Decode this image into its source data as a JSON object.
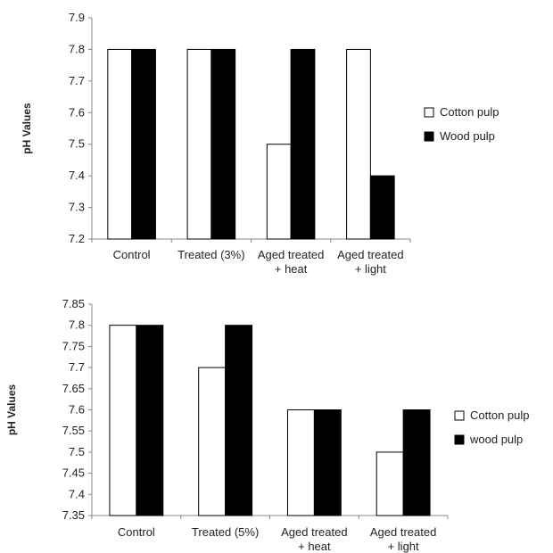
{
  "chart_data": [
    {
      "type": "bar",
      "categories": [
        [
          "Control"
        ],
        [
          "Treated (3%)"
        ],
        [
          "Aged treated",
          "+ heat"
        ],
        [
          "Aged treated",
          "+ light"
        ]
      ],
      "series": [
        {
          "name": "Cotton pulp",
          "values": [
            7.8,
            7.8,
            7.5,
            7.8
          ],
          "color": "#ffffff"
        },
        {
          "name": "Wood pulp",
          "values": [
            7.8,
            7.8,
            7.8,
            7.4
          ],
          "color": "#000000"
        }
      ],
      "ylabel": "pH Values",
      "ylim": [
        7.2,
        7.9
      ],
      "yticks": [
        "7.2",
        "7.3",
        "7.4",
        "7.5",
        "7.6",
        "7.7",
        "7.8",
        "7.9"
      ],
      "grid": false,
      "legend_position": "right"
    },
    {
      "type": "bar",
      "categories": [
        [
          "Control"
        ],
        [
          "Treated (5%)"
        ],
        [
          "Aged treated",
          "+ heat"
        ],
        [
          "Aged treated",
          "+ light"
        ]
      ],
      "series": [
        {
          "name": "Cotton pulp",
          "values": [
            7.8,
            7.7,
            7.6,
            7.5
          ],
          "color": "#ffffff"
        },
        {
          "name": "wood pulp",
          "values": [
            7.8,
            7.8,
            7.6,
            7.6
          ],
          "color": "#000000"
        }
      ],
      "ylabel": "pH Values",
      "ylim": [
        7.35,
        7.85
      ],
      "yticks": [
        "7.35",
        "7.4",
        "7.45",
        "7.5",
        "7.55",
        "7.6",
        "7.65",
        "7.7",
        "7.75",
        "7.8",
        "7.85"
      ],
      "grid": false,
      "legend_position": "right"
    }
  ]
}
